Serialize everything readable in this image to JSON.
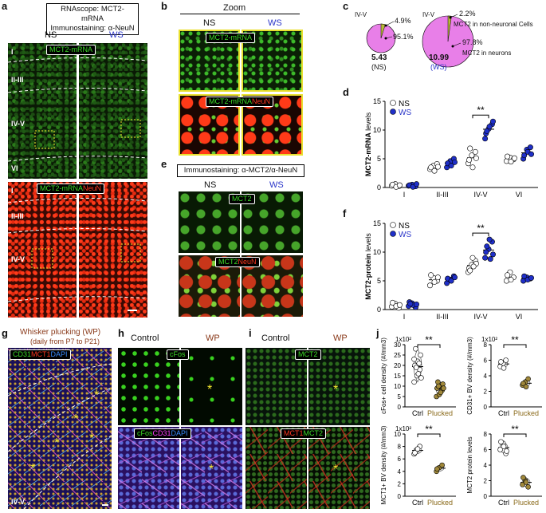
{
  "panel_letters": {
    "a": "a",
    "b": "b",
    "c": "c",
    "d": "d",
    "e": "e",
    "f": "f",
    "g": "g",
    "h": "h",
    "i": "i",
    "j": "j"
  },
  "a": {
    "title_line1": "RNAscope: MCT2-mRNA",
    "title_line2": "Immunostaining: α-NeuN",
    "ns": "NS",
    "ws": "WS",
    "top_tag": "MCT2-mRNA",
    "bottom_tag_green": "MCT2-mRNA",
    "bottom_tag_red": "NeuN",
    "layers_top": [
      "I",
      "II-III",
      "IV-V",
      "VI"
    ],
    "layers_bottom": [
      "I",
      "II-III",
      "IV-V"
    ]
  },
  "b": {
    "title": "Zoom",
    "ns": "NS",
    "ws": "WS",
    "top_tag": "MCT2-mRNA",
    "bottom_tag_green": "MCT2-mRNA",
    "bottom_tag_red": "NeuN"
  },
  "c": {
    "ns": {
      "layer": "IV-V",
      "pct_small": "4.9%",
      "pct_large": "95.1%",
      "value": "5.43",
      "group": "(NS)"
    },
    "ws": {
      "layer": "IV-V",
      "pct_small": "2.2%",
      "pct_large": "97.8%",
      "value": "10.99",
      "group": "(WS)",
      "label_small": "MCT2 in non-neuronal Cells",
      "label_large": "MCT2 in neurons"
    }
  },
  "e": {
    "title": "Immunostaining: α-MCT2/α-NeuN",
    "ns": "NS",
    "ws": "WS",
    "top_tag": "MCT2",
    "bottom_tag_green": "MCT2",
    "bottom_tag_red": "NeuN"
  },
  "g": {
    "title": "Whisker plucking (WP)",
    "subtitle": "(daily from P7 to P21)",
    "tag_cd31": "CD31",
    "tag_mct1": "MCT1",
    "tag_dapi": "DAPI",
    "layer": "IV-V"
  },
  "h": {
    "control": "Control",
    "wp": "WP",
    "top_tag": "cFos",
    "bottom_tag_cfos": "cFos",
    "bottom_tag_cd31": "CD31",
    "bottom_tag_dapi": "DAPI"
  },
  "i": {
    "control": "Control",
    "wp": "WP",
    "top_tag": "MCT2",
    "bottom_tag_mct1": "MCT1",
    "bottom_tag_mct2": "MCT2"
  },
  "colors": {
    "ns": "#ffffff",
    "ws": "#1f2fc8",
    "plucked": "#a0883a",
    "ctrl": "#ffffff",
    "pie": "#e87fe8"
  },
  "chart_data": [
    {
      "type": "scatter",
      "panel": "d",
      "ylabel": "MCT2-mRNA levels",
      "categories": [
        "I",
        "II-III",
        "IV-V",
        "VI"
      ],
      "yticks": [
        "0",
        "5",
        "10",
        "15"
      ],
      "ylim": [
        0,
        15
      ],
      "legend": [
        "NS",
        "WS"
      ],
      "significance": "**",
      "series": [
        {
          "name": "NS",
          "values": [
            [
              0.3,
              0.6,
              0.2,
              0.5,
              0.1,
              0.4
            ],
            [
              3.2,
              3.8,
              4.1,
              3.5,
              2.9,
              3.6
            ],
            [
              4.2,
              5.6,
              6.2,
              4.8,
              3.5,
              5.1,
              6.8
            ],
            [
              4.6,
              5.2,
              4.9,
              5.4,
              4.5,
              5.1
            ]
          ]
        },
        {
          "name": "WS",
          "values": [
            [
              0.3,
              0.5,
              0.2,
              0.4,
              0.1,
              0.6
            ],
            [
              3.5,
              4.6,
              5.0,
              4.2,
              3.8,
              4.4
            ],
            [
              8.5,
              10.2,
              11.0,
              9.4,
              10.6,
              11.5,
              9.8
            ],
            [
              5.0,
              6.6,
              7.0,
              5.6,
              6.2,
              5.8
            ]
          ]
        }
      ]
    },
    {
      "type": "scatter",
      "panel": "f",
      "ylabel": "MCT2-protein levels",
      "categories": [
        "I",
        "II-III",
        "IV-V",
        "VI"
      ],
      "yticks": [
        "0",
        "5",
        "10",
        "15"
      ],
      "ylim": [
        0,
        15
      ],
      "legend": [
        "NS",
        "WS"
      ],
      "significance": "**",
      "series": [
        {
          "name": "NS",
          "values": [
            [
              0.5,
              1.0,
              0.3,
              1.2,
              0.6,
              0.8
            ],
            [
              4.2,
              5.5,
              5.0,
              6.0,
              4.8,
              5.6
            ],
            [
              6.5,
              7.8,
              8.5,
              7.2,
              9.0,
              8.0,
              6.8,
              7.5
            ],
            [
              5.0,
              6.5,
              5.6,
              6.0,
              5.2
            ]
          ]
        },
        {
          "name": "WS",
          "values": [
            [
              0.6,
              1.1,
              0.4,
              1.3,
              0.8,
              0.9,
              1.0
            ],
            [
              4.6,
              5.2,
              5.8,
              5.4,
              5.0,
              5.6
            ],
            [
              9.0,
              10.5,
              11.8,
              10.0,
              12.2,
              9.6,
              11.0,
              8.8
            ],
            [
              5.0,
              5.6,
              5.4,
              5.8,
              5.2,
              5.5
            ]
          ]
        }
      ]
    },
    {
      "type": "scatter",
      "panel": "j1",
      "ylabel": "cFos+ cell density (#/mm3)",
      "exp_label": "1x10²",
      "categories": [
        "Ctrl",
        "Plucked"
      ],
      "yticks": [
        "0",
        "5",
        "10",
        "15",
        "20",
        "25",
        "30"
      ],
      "ylim": [
        0,
        30
      ],
      "significance": "**",
      "series": [
        {
          "name": "Ctrl",
          "values": [
            12,
            15,
            18,
            20,
            22,
            25,
            28,
            16,
            14,
            19,
            21,
            23
          ]
        },
        {
          "name": "Plucked",
          "values": [
            5,
            6,
            8,
            9,
            10,
            11,
            12,
            7,
            9,
            10
          ]
        }
      ]
    },
    {
      "type": "scatter",
      "panel": "j2",
      "ylabel": "CD31+ BV density (#/mm3)",
      "exp_label": "1x10²",
      "categories": [
        "Ctrl",
        "Plucked"
      ],
      "yticks": [
        "0",
        "2",
        "4",
        "6",
        "8"
      ],
      "ylim": [
        0,
        8
      ],
      "significance": "**",
      "series": [
        {
          "name": "Ctrl",
          "values": [
            5.2,
            5.6,
            6.0,
            5.8,
            5.0
          ]
        },
        {
          "name": "Plucked",
          "values": [
            2.8,
            3.2,
            3.6,
            3.0,
            2.6
          ]
        }
      ]
    },
    {
      "type": "scatter",
      "panel": "j3",
      "ylabel": "MCT1+ BV density (#/mm3)",
      "exp_label": "1x10²",
      "categories": [
        "Ctrl",
        "Plucked"
      ],
      "yticks": [
        "0",
        "2",
        "4",
        "6",
        "8",
        "10"
      ],
      "ylim": [
        0,
        10
      ],
      "significance": "**",
      "series": [
        {
          "name": "Ctrl",
          "values": [
            6.8,
            7.4,
            8.0,
            7.0,
            7.6
          ]
        },
        {
          "name": "Plucked",
          "values": [
            4.0,
            4.6,
            5.0,
            4.4
          ]
        }
      ]
    },
    {
      "type": "scatter",
      "panel": "j4",
      "ylabel": "MCT2 protein levels",
      "categories": [
        "Ctrl",
        "Plucked"
      ],
      "yticks": [
        "0",
        "2",
        "4",
        "6",
        "8"
      ],
      "ylim": [
        0,
        8
      ],
      "significance": "**",
      "series": [
        {
          "name": "Ctrl",
          "values": [
            6.0,
            6.8,
            5.5,
            7.0,
            6.4,
            5.8
          ]
        },
        {
          "name": "Plucked",
          "values": [
            1.5,
            2.0,
            1.2,
            2.4,
            1.8
          ]
        }
      ]
    }
  ]
}
